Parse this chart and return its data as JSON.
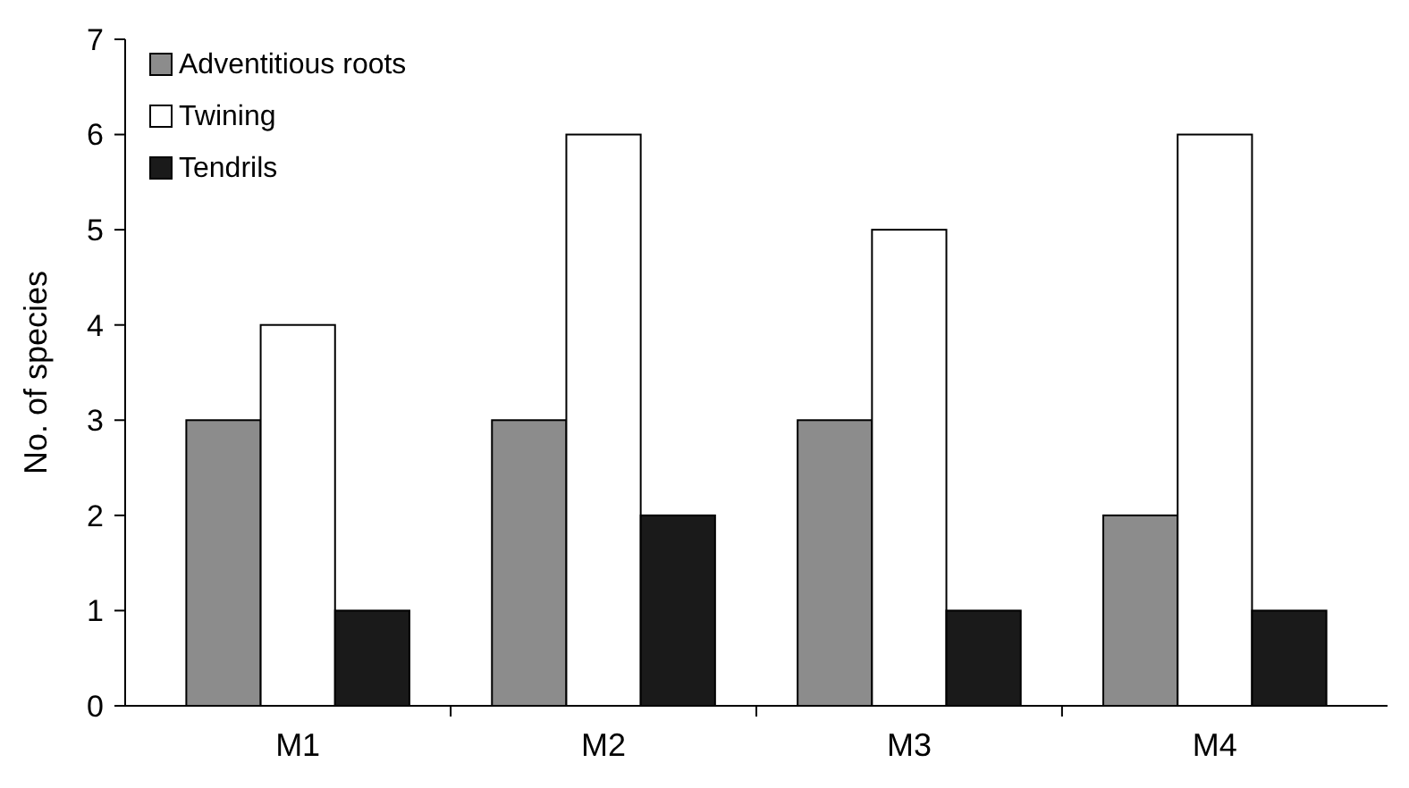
{
  "chart_data": {
    "type": "bar",
    "ylabel": "No. of species",
    "categories": [
      "M1",
      "M2",
      "M3",
      "M4"
    ],
    "series": [
      {
        "name": "Adventitious roots",
        "color": "#8c8c8c",
        "values": [
          3,
          3,
          3,
          2
        ]
      },
      {
        "name": "Twining",
        "color": "#ffffff",
        "values": [
          4,
          6,
          5,
          6
        ]
      },
      {
        "name": "Tendrils",
        "color": "#1a1a1a",
        "values": [
          1,
          2,
          1,
          1
        ]
      }
    ],
    "ylim": [
      0,
      7
    ],
    "yticks": [
      0,
      1,
      2,
      3,
      4,
      5,
      6,
      7
    ],
    "grid": false,
    "legend": "top left"
  }
}
